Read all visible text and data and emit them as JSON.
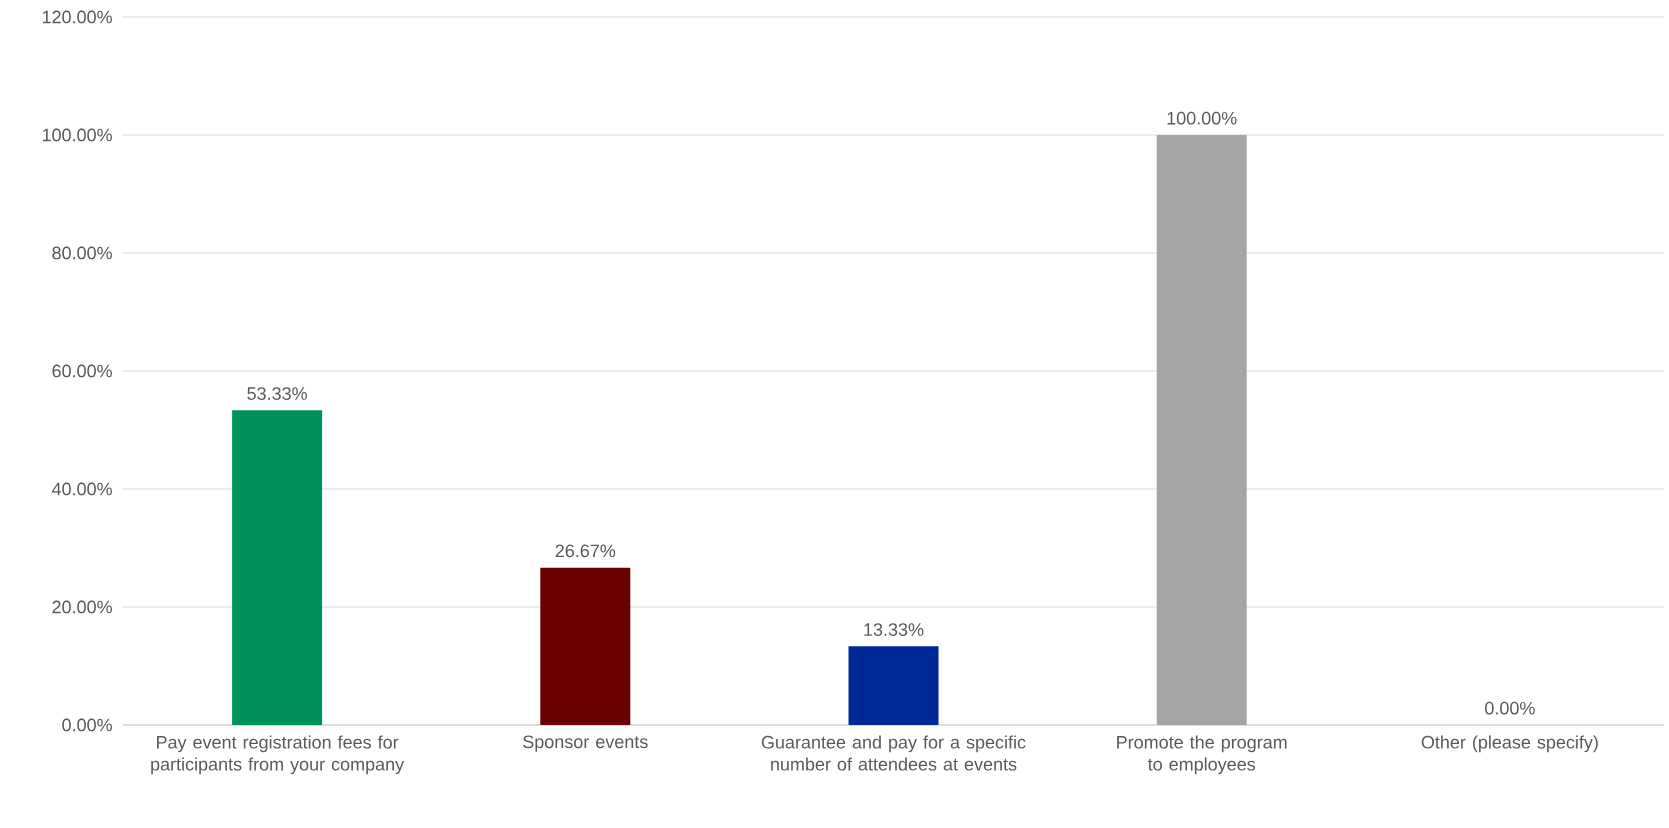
{
  "chart_data": {
    "type": "bar",
    "categories": [
      "Pay event registration fees for participants from your company",
      "Sponsor events",
      "Guarantee and pay for a specific number of attendees at events",
      "Promote the program to employees",
      "Other (please specify)"
    ],
    "values": [
      53.33,
      26.67,
      13.33,
      100,
      0
    ],
    "colors": [
      "#00915a",
      "#6b0000",
      "#002896",
      "#a5a5a5",
      "#ed7d31"
    ],
    "value_labels": [
      "53.33%",
      "26.67%",
      "13.33%",
      "100.00%",
      "0.00%"
    ],
    "ylim": [
      0,
      120
    ],
    "yticks": [
      {
        "value": 0,
        "label": "0.00%"
      },
      {
        "value": 20,
        "label": "20.00%"
      },
      {
        "value": 40,
        "label": "40.00%"
      },
      {
        "value": 60,
        "label": "60.00%"
      },
      {
        "value": 80,
        "label": "80.00%"
      },
      {
        "value": 100,
        "label": "100.00%"
      },
      {
        "value": 120,
        "label": "120.00%"
      }
    ],
    "grid": "y"
  }
}
